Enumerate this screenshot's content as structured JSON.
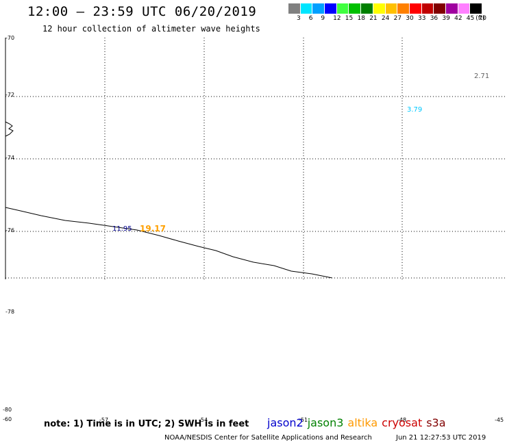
{
  "title": "12:00 — 23:59 UTC 06/20/2019",
  "subtitle": "12 hour collection of altimeter wave heights",
  "colorbar": {
    "unit": "(ft)",
    "ticks": [
      "3",
      "6",
      "9",
      "12",
      "15",
      "18",
      "21",
      "24",
      "27",
      "30",
      "33",
      "36",
      "39",
      "42",
      "45",
      "70"
    ],
    "colors": [
      "#808080",
      "#00e5ff",
      "#00a0ff",
      "#0000ff",
      "#40ff40",
      "#00c000",
      "#008000",
      "#ffff00",
      "#ffc000",
      "#ff8000",
      "#ff0000",
      "#c00000",
      "#800000",
      "#a000a0",
      "#ff80ff",
      "#000000"
    ]
  },
  "lat_labels": [
    "-70",
    "-72",
    "-74",
    "-76",
    "-78",
    "-80"
  ],
  "lon_labels": [
    "-60",
    "-57",
    "-54",
    "-51",
    "-48",
    "-45"
  ],
  "wave_labels": [
    {
      "text": "2.71",
      "color": "#606060"
    },
    {
      "text": "3.79",
      "color": "#00c8ff"
    },
    {
      "text": "11.95",
      "color": "#00008b"
    },
    {
      "text": "19.17",
      "color": "#ffa000"
    }
  ],
  "note": "note: 1) Time is in UTC; 2) SWH is in feet",
  "satellites": [
    {
      "name": "jason2",
      "color": "#0000cc"
    },
    {
      "name": "jason3",
      "color": "#008000"
    },
    {
      "name": "altika",
      "color": "#ff9900"
    },
    {
      "name": "cryosat",
      "color": "#cc0000"
    },
    {
      "name": "s3a",
      "color": "#800000"
    }
  ],
  "footer": "NOAA/NESDIS Center for Satellite Applications and Research",
  "footer_time": "Jun 21 12:27:53 UTC 2019"
}
